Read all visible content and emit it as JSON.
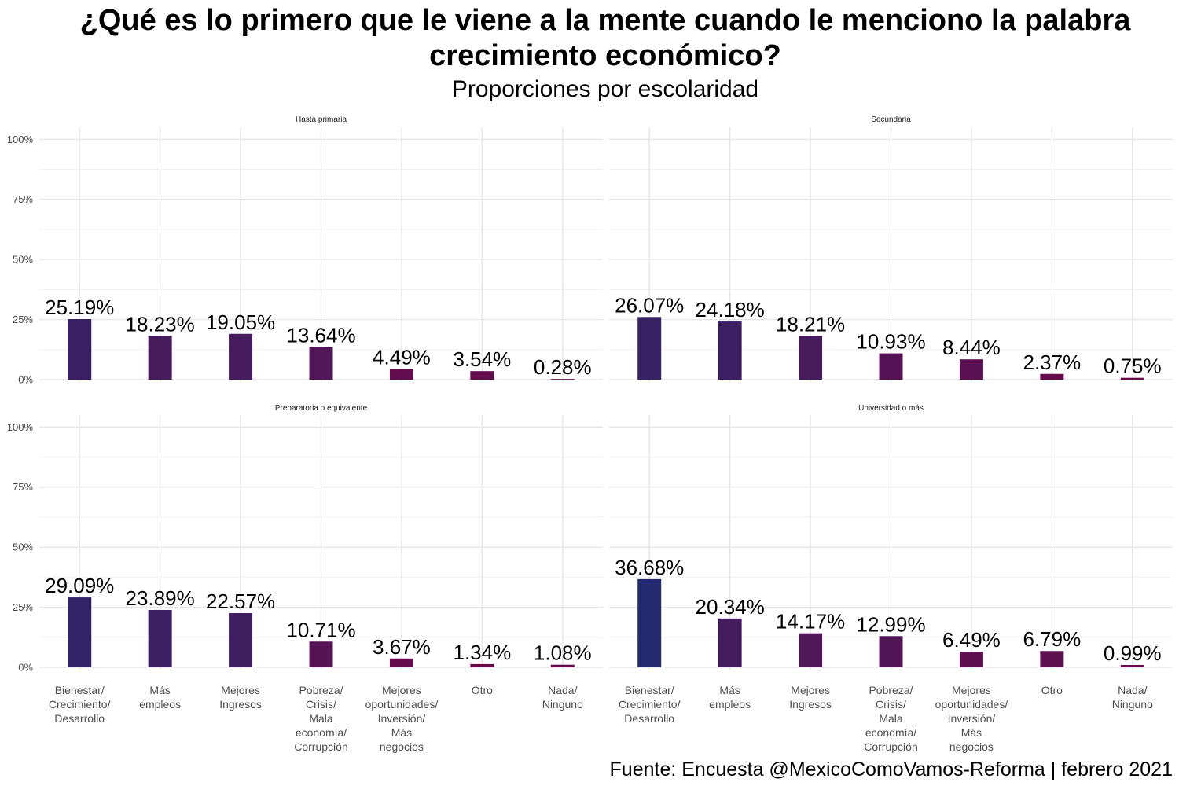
{
  "title_lines": [
    "¿Qué es lo primero que le viene a la mente cuando le menciono la palabra",
    "crecimiento económico?"
  ],
  "subtitle": "Proporciones por escolaridad",
  "caption": "Fuente: Encuesta @MexicoComoVamos-Reforma | febrero 2021",
  "chart_data": {
    "type": "bar",
    "facets": [
      "Hasta primaria",
      "Secundaria",
      "Preparatoria o equivalente",
      "Universidad o más"
    ],
    "categories": [
      "Bienestar/ Crecimiento/ Desarrollo",
      "Más empleos",
      "Mejores Ingresos",
      "Pobreza/ Crisis/ Mala economía/ Corrupción",
      "Mejores oportunidades/ Inversión/ Más negocios",
      "Otro",
      "Nada/ Ninguno"
    ],
    "category_lines": [
      [
        "Bienestar/",
        "Crecimiento/",
        "Desarrollo"
      ],
      [
        "Más",
        "empleos"
      ],
      [
        "Mejores",
        "Ingresos"
      ],
      [
        "Pobreza/",
        "Crisis/",
        "Mala",
        "economía/",
        "Corrupción"
      ],
      [
        "Mejores",
        "oportunidades/",
        "Inversión/",
        "Más",
        "negocios"
      ],
      [
        "Otro"
      ],
      [
        "Nada/",
        "Ninguno"
      ]
    ],
    "series": [
      {
        "facet": "Hasta primaria",
        "values": [
          25.19,
          18.23,
          19.05,
          13.64,
          4.49,
          3.54,
          0.28
        ],
        "labels": [
          "25.19%",
          "18.23%",
          "19.05%",
          "13.64%",
          "4.49%",
          "3.54%",
          "0.28%"
        ]
      },
      {
        "facet": "Secundaria",
        "values": [
          26.07,
          24.18,
          18.21,
          10.93,
          8.44,
          2.37,
          0.75
        ],
        "labels": [
          "26.07%",
          "24.18%",
          "18.21%",
          "10.93%",
          "8.44%",
          "2.37%",
          "0.75%"
        ]
      },
      {
        "facet": "Preparatoria o equivalente",
        "values": [
          29.09,
          23.89,
          22.57,
          10.71,
          3.67,
          1.34,
          1.08
        ],
        "labels": [
          "29.09%",
          "23.89%",
          "22.57%",
          "10.71%",
          "3.67%",
          "1.34%",
          "1.08%"
        ]
      },
      {
        "facet": "Universidad o más",
        "values": [
          36.68,
          20.34,
          14.17,
          12.99,
          6.49,
          6.79,
          0.99
        ],
        "labels": [
          "36.68%",
          "20.34%",
          "14.17%",
          "12.99%",
          "6.49%",
          "6.79%",
          "0.99%"
        ]
      }
    ],
    "y_ticks": [
      0,
      25,
      50,
      75,
      100
    ],
    "y_tick_labels": [
      "0%",
      "25%",
      "50%",
      "75%",
      "100%"
    ],
    "ylim": [
      0,
      100
    ],
    "grid": true,
    "legend": "none",
    "color_low": "#6a0a4a",
    "color_high": "#232a6e"
  }
}
